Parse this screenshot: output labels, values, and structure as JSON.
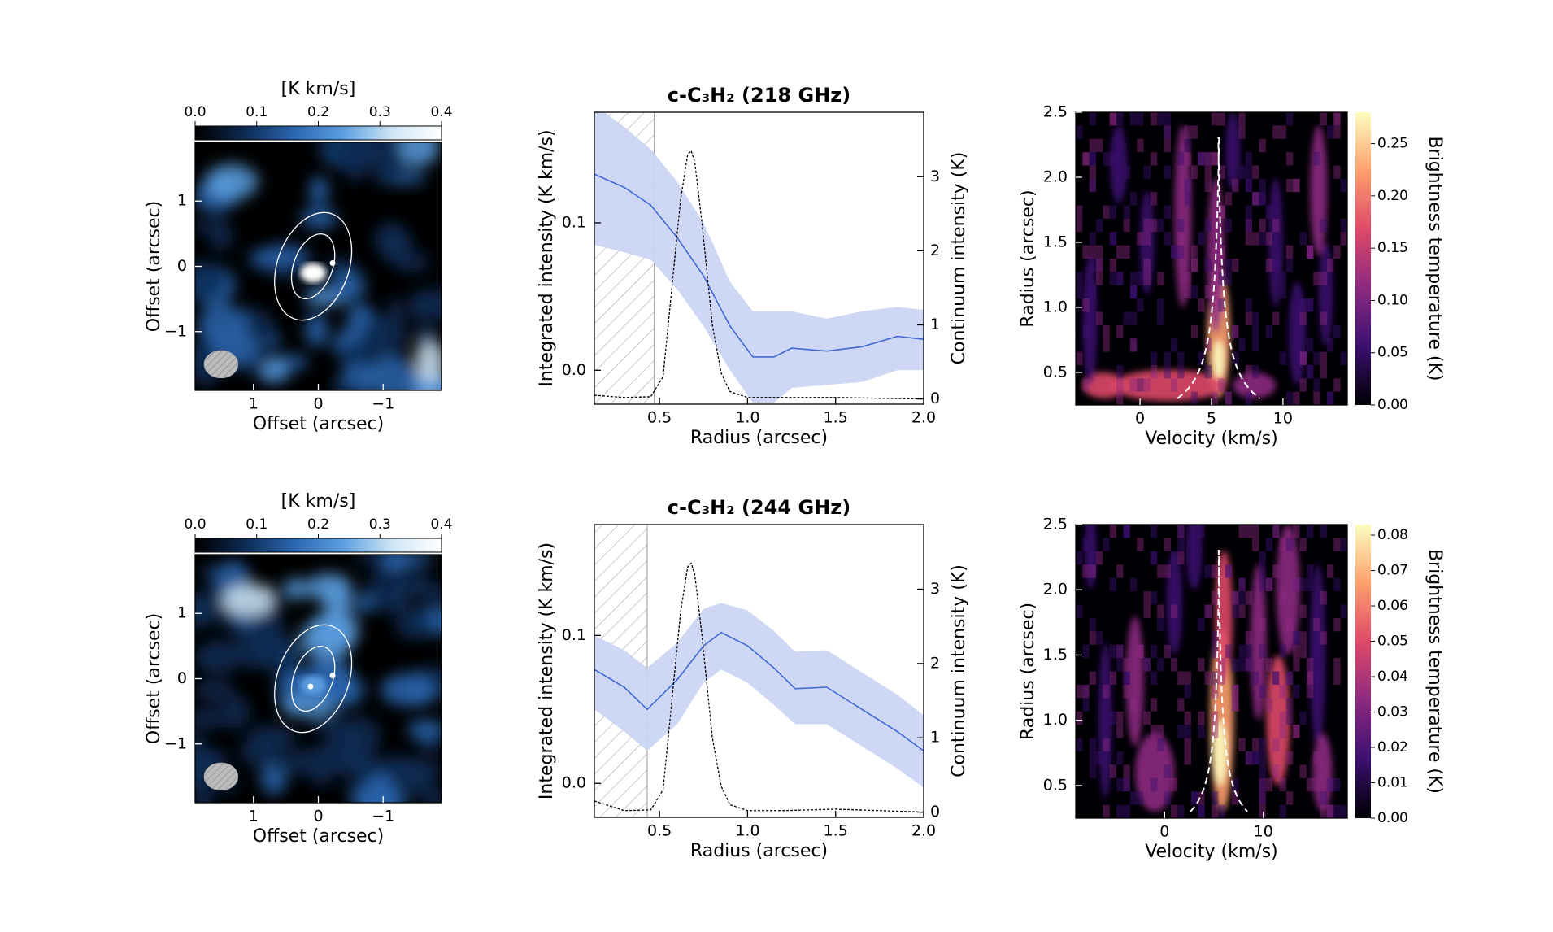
{
  "chart_data": [
    {
      "type": "map",
      "colorbar_label": "[K km/s]",
      "cbar_lim": [
        0,
        0.4
      ],
      "cbar_ticks": [
        {
          "value": 0,
          "label": "0.0"
        },
        0.1,
        0.2,
        0.3,
        0.4
      ],
      "cmap": [
        "#000000",
        "#0d2a52",
        "#2a66b0",
        "#5b9ee0",
        "#cfe6f6",
        "#ffffff"
      ],
      "xlabel": "Offset (arcsec)",
      "ylabel": "Offset (arcsec)",
      "xlim": [
        1.9,
        -1.9
      ],
      "xticks": [
        1,
        0,
        {
          "value": -1,
          "label": "−1"
        }
      ],
      "ylim": [
        -1.9,
        1.9
      ],
      "yticks": [
        {
          "value": -1,
          "label": "−1"
        },
        0,
        1
      ]
    },
    {
      "type": "line",
      "title": "c-C₃H₂ (218 GHz)",
      "xlabel": "Radius (arcsec)",
      "ylabel": "Integrated intensity (K km/s)",
      "y2label": "Continuum intensity (K)",
      "xlim": [
        0.13,
        2.0
      ],
      "xticks": [
        0.5,
        {
          "value": 1,
          "label": "1.0"
        },
        1.5,
        {
          "value": 2,
          "label": "2.0"
        }
      ],
      "ylim": [
        -0.023,
        0.175
      ],
      "yticks": [
        {
          "value": 0,
          "label": "0.0"
        },
        0.1
      ],
      "y2lim": [
        -0.07,
        3.87
      ],
      "y2ticks": [
        0,
        1,
        2,
        3
      ],
      "hatch_to": 0.47,
      "series": [
        {
          "color": "#4169d4",
          "band_color": "#c9d4f4",
          "x": [
            0.13,
            0.3,
            0.45,
            0.6,
            0.75,
            0.9,
            1.03,
            1.15,
            1.25,
            1.45,
            1.65,
            1.85,
            2.0
          ],
          "values": [
            0.133,
            0.124,
            0.112,
            0.09,
            0.064,
            0.03,
            0.009,
            0.009,
            0.015,
            0.013,
            0.016,
            0.023,
            0.021
          ],
          "lower": [
            0.085,
            0.08,
            0.075,
            0.055,
            0.03,
            0.0,
            -0.022,
            -0.022,
            -0.012,
            -0.01,
            -0.008,
            0.0,
            0.0
          ],
          "upper": [
            0.18,
            0.165,
            0.15,
            0.128,
            0.1,
            0.06,
            0.04,
            0.04,
            0.04,
            0.035,
            0.04,
            0.043,
            0.041
          ]
        },
        {
          "color": "#000000",
          "axis": "y2",
          "dashed": true,
          "x": [
            0.13,
            0.3,
            0.45,
            0.52,
            0.57,
            0.62,
            0.66,
            0.68,
            0.7,
            0.74,
            0.8,
            0.85,
            0.9,
            1.0,
            1.2,
            1.5,
            2.0
          ],
          "values": [
            0.05,
            0.02,
            0.03,
            0.3,
            1.5,
            2.7,
            3.3,
            3.35,
            3.2,
            2.4,
            1.0,
            0.35,
            0.1,
            0.02,
            0.02,
            0.02,
            0.0
          ]
        }
      ]
    },
    {
      "type": "pv",
      "xlabel": "Velocity (km/s)",
      "ylabel": "Radius (arcsec)",
      "colorbar_label": "Brightness temperature (K)",
      "xlim": [
        -4.5,
        14.5
      ],
      "xticks": [
        0,
        5,
        10
      ],
      "ylim": [
        0.25,
        2.5
      ],
      "yticks": [
        0.5,
        {
          "value": 1,
          "label": "1.0"
        },
        1.5,
        {
          "value": 2,
          "label": "2.0"
        },
        2.5
      ],
      "cbar_lim": [
        0,
        0.28
      ],
      "cbar_ticks": [
        {
          "value": 0,
          "label": "0.00"
        },
        0.05,
        {
          "value": 0.1,
          "label": "0.10"
        },
        0.15,
        {
          "value": 0.2,
          "label": "0.20"
        },
        0.25
      ],
      "cmap": [
        "#000004",
        "#3b0f70",
        "#8c2981",
        "#de4968",
        "#fe9f6d",
        "#fcfdbf"
      ]
    },
    {
      "type": "map",
      "colorbar_label": "[K km/s]",
      "cbar_lim": [
        0,
        0.4
      ],
      "cbar_ticks": [
        {
          "value": 0,
          "label": "0.0"
        },
        0.1,
        0.2,
        0.3,
        0.4
      ],
      "cmap": [
        "#000000",
        "#0d2a52",
        "#2a66b0",
        "#5b9ee0",
        "#cfe6f6",
        "#ffffff"
      ],
      "xlabel": "Offset (arcsec)",
      "ylabel": "Offset (arcsec)",
      "xlim": [
        1.9,
        -1.9
      ],
      "xticks": [
        1,
        0,
        {
          "value": -1,
          "label": "−1"
        }
      ],
      "ylim": [
        -1.9,
        1.9
      ],
      "yticks": [
        {
          "value": -1,
          "label": "−1"
        },
        0,
        1
      ]
    },
    {
      "type": "line",
      "title": "c-C₃H₂ (244 GHz)",
      "xlabel": "Radius (arcsec)",
      "ylabel": "Integrated intensity (K km/s)",
      "y2label": "Continuum intensity (K)",
      "xlim": [
        0.13,
        2.0
      ],
      "xticks": [
        0.5,
        {
          "value": 1,
          "label": "1.0"
        },
        1.5,
        {
          "value": 2,
          "label": "2.0"
        }
      ],
      "ylim": [
        -0.023,
        0.175
      ],
      "yticks": [
        {
          "value": 0,
          "label": "0.0"
        },
        0.1
      ],
      "y2lim": [
        -0.07,
        3.87
      ],
      "y2ticks": [
        0,
        1,
        2,
        3
      ],
      "hatch_to": 0.43,
      "series": [
        {
          "color": "#4169d4",
          "band_color": "#c9d4f4",
          "x": [
            0.13,
            0.3,
            0.43,
            0.6,
            0.75,
            0.85,
            1.0,
            1.15,
            1.27,
            1.45,
            1.65,
            1.85,
            2.0
          ],
          "values": [
            0.077,
            0.065,
            0.05,
            0.07,
            0.093,
            0.102,
            0.093,
            0.078,
            0.064,
            0.065,
            0.05,
            0.035,
            0.022
          ],
          "lower": [
            0.05,
            0.035,
            0.022,
            0.04,
            0.068,
            0.077,
            0.068,
            0.053,
            0.04,
            0.04,
            0.025,
            0.01,
            -0.003
          ],
          "upper": [
            0.1,
            0.09,
            0.078,
            0.095,
            0.118,
            0.122,
            0.117,
            0.103,
            0.089,
            0.09,
            0.075,
            0.06,
            0.046
          ]
        },
        {
          "color": "#000000",
          "axis": "y2",
          "dashed": true,
          "x": [
            0.13,
            0.3,
            0.45,
            0.52,
            0.57,
            0.62,
            0.66,
            0.68,
            0.7,
            0.74,
            0.8,
            0.85,
            0.9,
            1.0,
            1.2,
            1.5,
            2.0
          ],
          "values": [
            0.15,
            0.02,
            0.03,
            0.3,
            1.5,
            2.7,
            3.3,
            3.35,
            3.2,
            2.4,
            1.0,
            0.35,
            0.1,
            0.02,
            0.02,
            0.04,
            0.0
          ]
        }
      ]
    },
    {
      "type": "pv",
      "xlabel": "Velocity (km/s)",
      "ylabel": "Radius (arcsec)",
      "colorbar_label": "Brightness temperature (K)",
      "xlim": [
        -9,
        18.5
      ],
      "xticks": [
        0,
        10
      ],
      "ylim": [
        0.25,
        2.5
      ],
      "yticks": [
        0.5,
        {
          "value": 1,
          "label": "1.0"
        },
        1.5,
        {
          "value": 2,
          "label": "2.0"
        },
        2.5
      ],
      "cbar_lim": [
        0,
        0.083
      ],
      "cbar_ticks": [
        {
          "value": 0,
          "label": "0.00"
        },
        0.01,
        0.02,
        0.03,
        0.04,
        0.05,
        0.06,
        0.07,
        0.08
      ],
      "cmap": [
        "#000004",
        "#3b0f70",
        "#8c2981",
        "#de4968",
        "#fe9f6d",
        "#fcfdbf"
      ]
    }
  ]
}
